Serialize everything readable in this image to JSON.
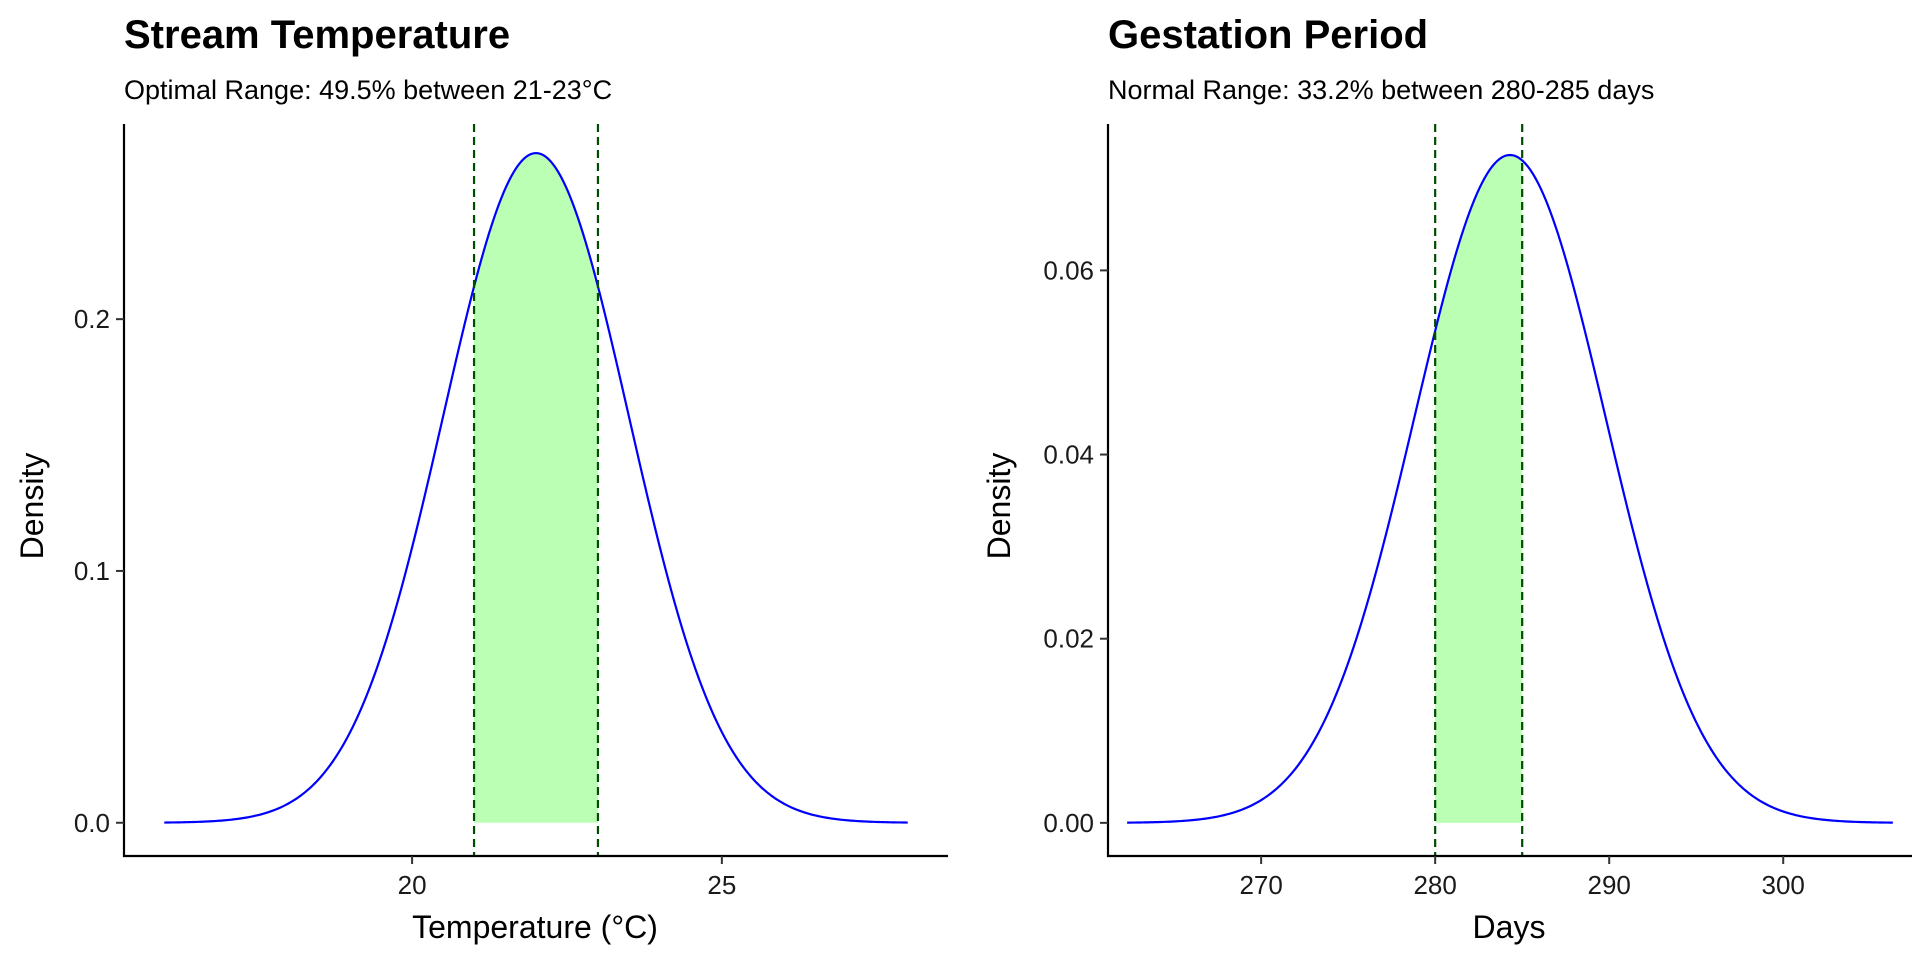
{
  "chart_data": [
    {
      "type": "line",
      "title": "Stream Temperature",
      "subtitle": "Optimal Range: 49.5% between 21-23°C",
      "xlabel": "Temperature (°C)",
      "ylabel": "Density",
      "xlim": [
        15.35,
        28.65
      ],
      "ylim": [
        -0.0132,
        0.2775
      ],
      "x_ticks": [
        20,
        25
      ],
      "x_tick_labels": [
        "20",
        "25"
      ],
      "y_ticks": [
        0,
        0.1,
        0.2
      ],
      "y_tick_labels": [
        "0.0",
        "0.1",
        "0.2"
      ],
      "distribution": {
        "family": "normal",
        "mean": 22,
        "sd": 1.5,
        "x_range": [
          16,
          28
        ]
      },
      "highlight": {
        "from": 21,
        "to": 23,
        "fill": "#bbffb4"
      },
      "line_color": "#0000ff",
      "vline_color": "#004d00",
      "grid": false
    },
    {
      "type": "line",
      "title": "Gestation Period",
      "subtitle": "Normal Range: 33.2% between 280-285 days",
      "xlabel": "Days",
      "ylabel": "Density",
      "xlim": [
        261.2,
        307.4
      ],
      "ylim": [
        -0.0036,
        0.0759
      ],
      "x_ticks": [
        270,
        280,
        290,
        300
      ],
      "x_tick_labels": [
        "270",
        "280",
        "290",
        "300"
      ],
      "y_ticks": [
        0,
        0.02,
        0.04,
        0.06
      ],
      "y_tick_labels": [
        "0.00",
        "0.02",
        "0.04",
        "0.06"
      ],
      "distribution": {
        "family": "normal",
        "mean": 284.3,
        "sd": 5.5,
        "x_range": [
          262.3,
          306.3
        ]
      },
      "highlight": {
        "from": 280,
        "to": 285,
        "fill": "#bbffb4"
      },
      "line_color": "#0000ff",
      "vline_color": "#004d00",
      "grid": false
    }
  ]
}
